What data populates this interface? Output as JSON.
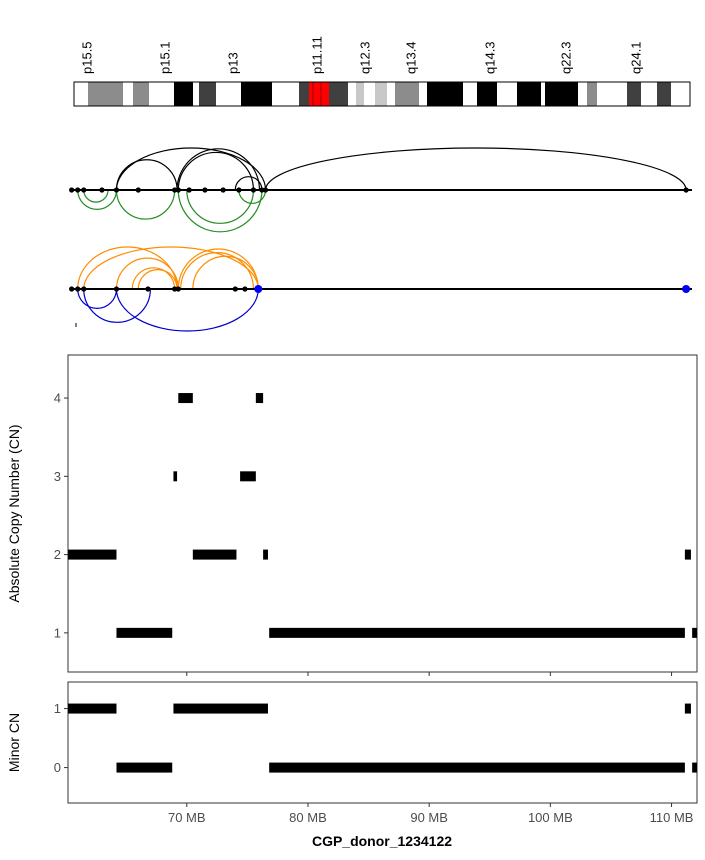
{
  "colors": {
    "arc_top_upper": "#000000",
    "arc_top_lower": "#228B22",
    "arc_bottom_upper": "#FF8C00",
    "arc_bottom_lower": "#0000CD",
    "centromere": "#FF0000",
    "endpoint_highlight": "#0000FF",
    "segment": "#000000"
  },
  "chart_data": [
    {
      "type": "ideogram",
      "bands": [
        "p15.5",
        "p15.1",
        "p13",
        "p11.11",
        "q12.3",
        "q13.4",
        "q14.3",
        "q22.3",
        "q24.1"
      ]
    },
    {
      "type": "arc-diagram",
      "tracks": [
        {
          "breakpoints_mb": [
            60.5,
            61.0,
            61.5,
            63.0,
            64.2,
            66.0,
            69.0,
            69.3,
            70.2,
            71.5,
            73.0,
            74.3,
            75.5,
            76.2,
            76.5,
            111.2
          ],
          "arcs_above": [
            [
              64.2,
              69.2
            ],
            [
              69.3,
              75.5
            ],
            [
              64.2,
              76.5
            ],
            [
              74.0,
              76.2
            ],
            [
              69.2,
              76.0
            ],
            [
              76.5,
              111.2
            ]
          ],
          "arcs_below": [
            [
              61.0,
              64.2
            ],
            [
              61.5,
              63.5
            ],
            [
              64.2,
              69.0
            ],
            [
              69.3,
              76.2
            ],
            [
              74.3,
              76.5
            ],
            [
              70.0,
              75.5
            ]
          ]
        },
        {
          "breakpoints_mb": [
            60.5,
            61.0,
            61.5,
            64.2,
            66.8,
            69.0,
            69.3,
            74.0,
            74.8,
            75.9,
            111.2
          ],
          "highlight_mb": [
            75.9,
            111.2
          ],
          "arcs_above": [
            [
              61.0,
              69.2
            ],
            [
              64.2,
              69.3
            ],
            [
              65.5,
              69.0
            ],
            [
              66.0,
              69.2
            ],
            [
              69.3,
              75.9
            ],
            [
              69.5,
              75.5
            ],
            [
              70.5,
              75.9
            ],
            [
              61.5,
              75.9
            ]
          ],
          "arcs_below": [
            [
              61.0,
              64.2
            ],
            [
              61.5,
              67.0
            ],
            [
              64.2,
              75.9
            ]
          ]
        }
      ]
    },
    {
      "type": "segments",
      "ylabel": "Absolute Copy Number (CN)",
      "xlim": [
        60.2,
        112.1
      ],
      "ylim": [
        0.5,
        4.55
      ],
      "yticks": [
        1,
        2,
        3,
        4
      ],
      "segments": [
        {
          "start": 60.2,
          "end": 64.2,
          "cn": 2
        },
        {
          "start": 64.2,
          "end": 68.8,
          "cn": 1
        },
        {
          "start": 68.9,
          "end": 69.2,
          "cn": 3
        },
        {
          "start": 69.3,
          "end": 70.5,
          "cn": 4
        },
        {
          "start": 70.5,
          "end": 74.1,
          "cn": 2
        },
        {
          "start": 74.4,
          "end": 75.7,
          "cn": 3
        },
        {
          "start": 75.7,
          "end": 76.3,
          "cn": 4
        },
        {
          "start": 76.3,
          "end": 76.7,
          "cn": 2
        },
        {
          "start": 76.8,
          "end": 111.1,
          "cn": 1
        },
        {
          "start": 111.1,
          "end": 111.6,
          "cn": 2
        },
        {
          "start": 111.7,
          "end": 112.1,
          "cn": 1
        }
      ]
    },
    {
      "type": "segments",
      "ylabel": "Minor CN",
      "xlabel": "CGP_donor_1234122",
      "xlim": [
        60.2,
        112.1
      ],
      "ylim": [
        -0.6,
        1.45
      ],
      "yticks": [
        0,
        1
      ],
      "xticks": [
        70,
        80,
        90,
        100,
        110
      ],
      "xticklabels": [
        "70 MB",
        "80 MB",
        "90 MB",
        "100 MB",
        "110 MB"
      ],
      "segments": [
        {
          "start": 60.2,
          "end": 64.2,
          "cn": 1
        },
        {
          "start": 64.2,
          "end": 68.8,
          "cn": 0
        },
        {
          "start": 68.9,
          "end": 76.7,
          "cn": 1
        },
        {
          "start": 76.8,
          "end": 111.1,
          "cn": 0
        },
        {
          "start": 111.1,
          "end": 111.6,
          "cn": 1
        },
        {
          "start": 111.7,
          "end": 112.1,
          "cn": 0
        }
      ]
    }
  ]
}
